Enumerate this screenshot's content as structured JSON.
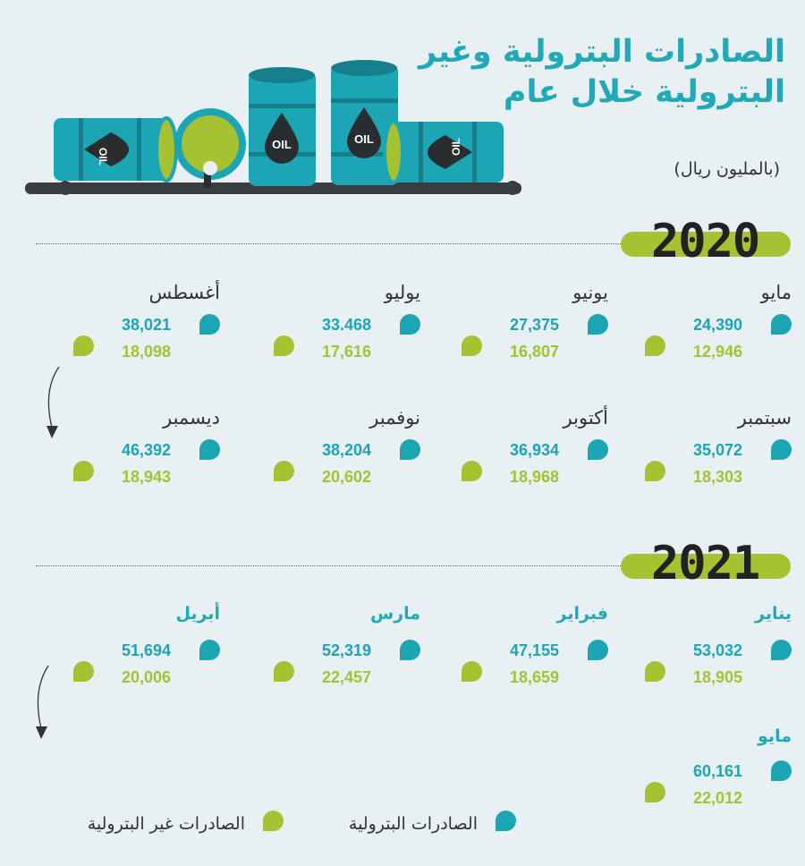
{
  "title_lines": [
    "الصادرات البترولية وغير",
    "البترولية خلال عام"
  ],
  "unit": "(بالمليون ريال)",
  "barrel_label": "OIL",
  "colors": {
    "oil": "#1ca5b5",
    "non_oil": "#a6c232",
    "bg": "#e8f0f3"
  },
  "legend": {
    "oil": "الصادرات البترولية",
    "non_oil": "الصادرات غير البترولية"
  },
  "chart_data": {
    "type": "table",
    "title": "الصادرات البترولية وغير البترولية خلال عام",
    "unit": "(بالمليون ريال)",
    "series_names": [
      "الصادرات البترولية",
      "الصادرات غير البترولية"
    ],
    "years": [
      {
        "year": "2020",
        "months": [
          {
            "name": "مايو",
            "oil": "24,390",
            "non_oil": "12,946"
          },
          {
            "name": "يونيو",
            "oil": "27,375",
            "non_oil": "16,807"
          },
          {
            "name": "يوليو",
            "oil": "33.468",
            "non_oil": "17,616"
          },
          {
            "name": "أغسطس",
            "oil": "38,021",
            "non_oil": "18,098"
          },
          {
            "name": "سبتمبر",
            "oil": "35,072",
            "non_oil": "18,303"
          },
          {
            "name": "أكتوبر",
            "oil": "36,934",
            "non_oil": "18,968"
          },
          {
            "name": "نوفمبر",
            "oil": "38,204",
            "non_oil": "20,602"
          },
          {
            "name": "ديسمبر",
            "oil": "46,392",
            "non_oil": "18,943"
          }
        ]
      },
      {
        "year": "2021",
        "months": [
          {
            "name": "يناير",
            "oil": "53,032",
            "non_oil": "18,905"
          },
          {
            "name": "فبراير",
            "oil": "47,155",
            "non_oil": "18,659"
          },
          {
            "name": "مارس",
            "oil": "52,319",
            "non_oil": "22,457"
          },
          {
            "name": "أبريل",
            "oil": "51,694",
            "non_oil": "20,006"
          },
          {
            "name": "مايو",
            "oil": "60,161",
            "non_oil": "22,012"
          }
        ]
      }
    ]
  }
}
